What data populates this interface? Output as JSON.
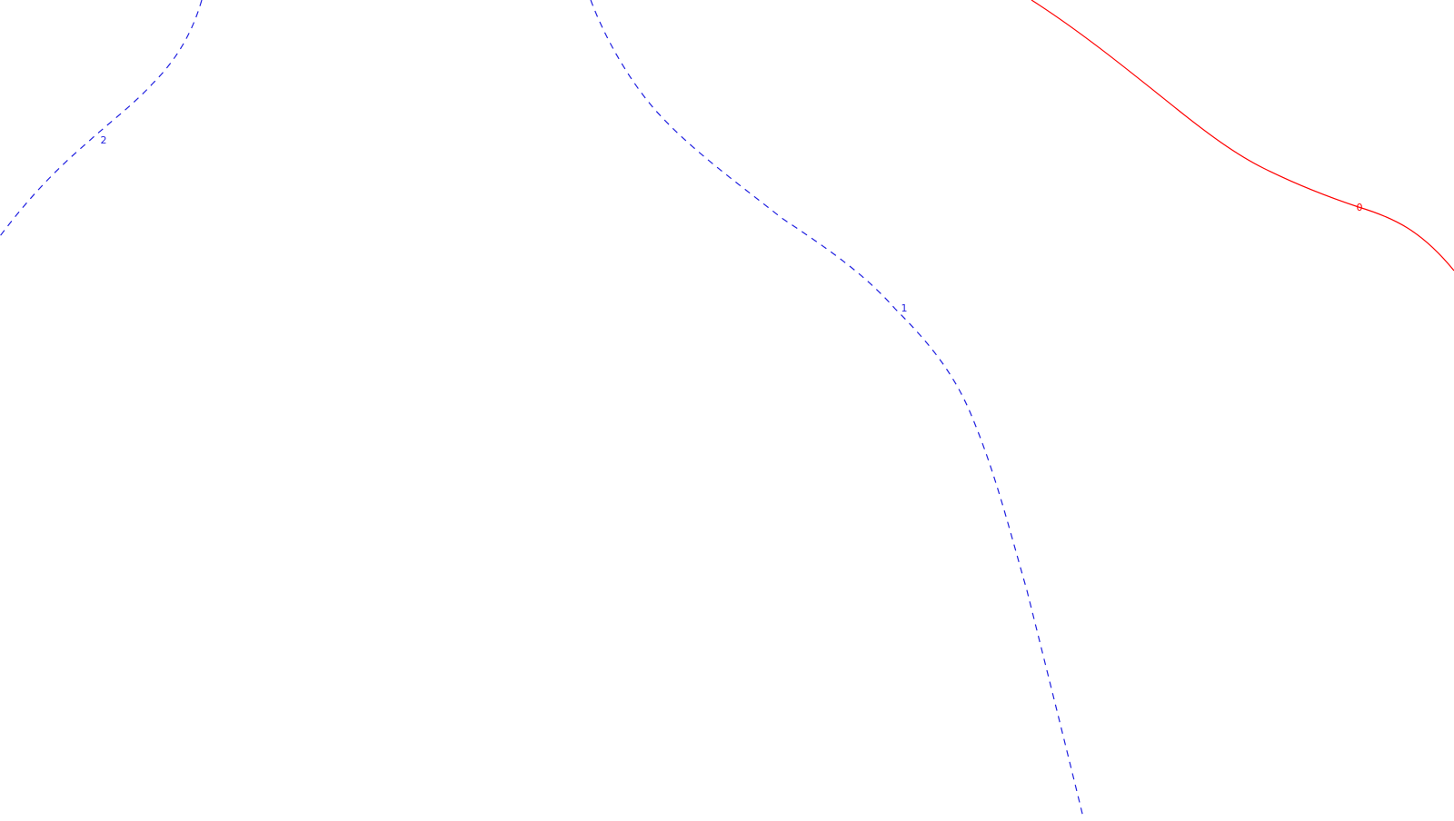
{
  "contours": [
    {
      "level_label": "2",
      "color": "#1f1fe0",
      "style": "dashed"
    },
    {
      "level_label": "1",
      "color": "#1f1fe0",
      "style": "dashed"
    },
    {
      "level_label": "0",
      "color": "#ff0000",
      "style": "solid"
    }
  ]
}
